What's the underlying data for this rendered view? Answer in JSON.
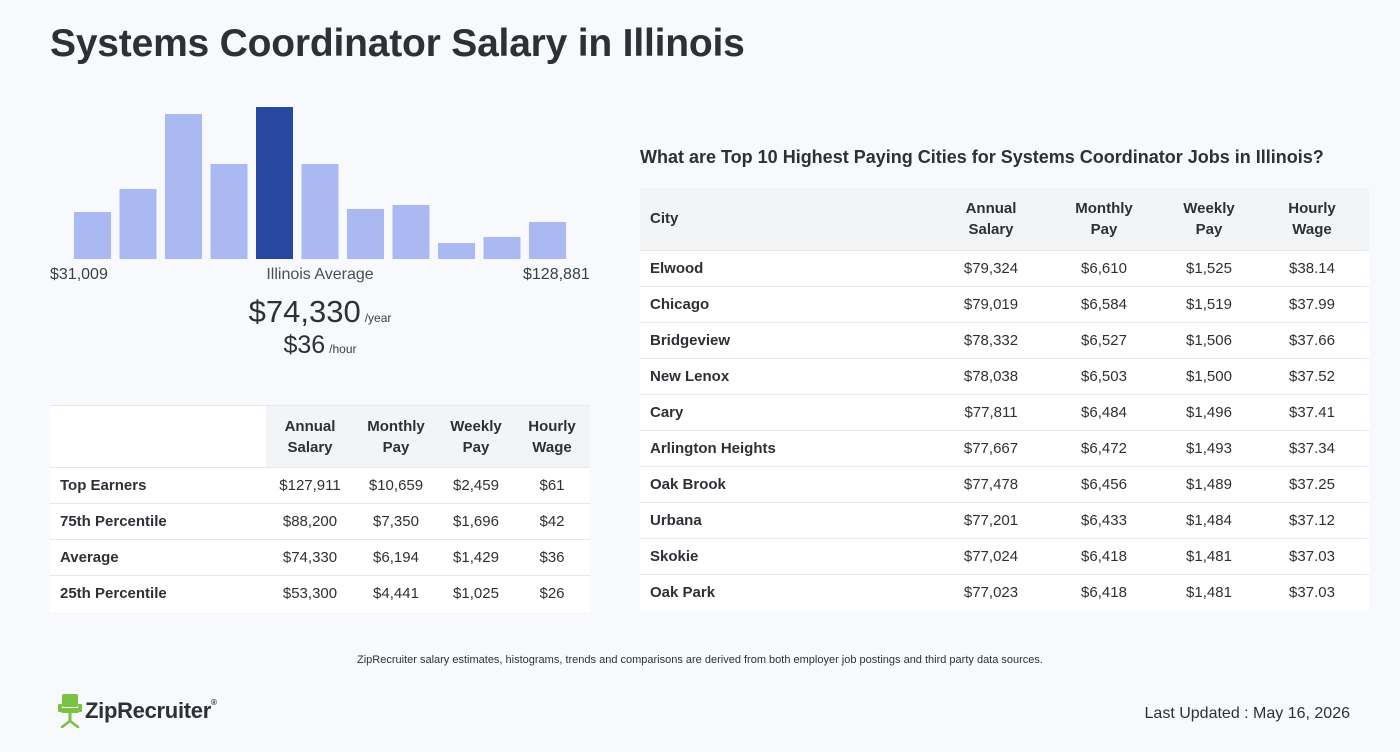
{
  "page": {
    "title": "Systems Coordinator Salary in Illinois"
  },
  "colors": {
    "bar": "#aab9f2",
    "bar_highlight": "#2747a3",
    "brand_green": "#7bc142"
  },
  "chart_data": {
    "type": "bar",
    "title": "",
    "values": [
      47,
      70,
      145,
      95,
      152,
      95,
      50,
      54,
      16,
      22,
      37
    ],
    "highlight_index": 4,
    "ylim": [
      0,
      152
    ],
    "grid": false,
    "range_min_label": "$31,009",
    "range_max_label": "$128,881",
    "center_label": "Illinois Average"
  },
  "average": {
    "annual": "$74,330",
    "annual_unit": "/year",
    "hourly": "$36",
    "hourly_unit": "/hour"
  },
  "percentile_table": {
    "headers": [
      {
        "line1": "Annual",
        "line2": "Salary"
      },
      {
        "line1": "Monthly",
        "line2": "Pay"
      },
      {
        "line1": "Weekly",
        "line2": "Pay"
      },
      {
        "line1": "Hourly",
        "line2": "Wage"
      }
    ],
    "rows": [
      {
        "label": "Top Earners",
        "annual": "$127,911",
        "monthly": "$10,659",
        "weekly": "$2,459",
        "hourly": "$61"
      },
      {
        "label": "75th Percentile",
        "annual": "$88,200",
        "monthly": "$7,350",
        "weekly": "$1,696",
        "hourly": "$42"
      },
      {
        "label": "Average",
        "annual": "$74,330",
        "monthly": "$6,194",
        "weekly": "$1,429",
        "hourly": "$36"
      },
      {
        "label": "25th Percentile",
        "annual": "$53,300",
        "monthly": "$4,441",
        "weekly": "$1,025",
        "hourly": "$26"
      }
    ]
  },
  "cities": {
    "heading": "What are Top 10 Highest Paying Cities for Systems Coordinator Jobs in Illinois?",
    "city_header": "City",
    "headers": [
      {
        "line1": "Annual",
        "line2": "Salary"
      },
      {
        "line1": "Monthly",
        "line2": "Pay"
      },
      {
        "line1": "Weekly",
        "line2": "Pay"
      },
      {
        "line1": "Hourly",
        "line2": "Wage"
      }
    ],
    "rows": [
      {
        "city": "Elwood",
        "annual": "$79,324",
        "monthly": "$6,610",
        "weekly": "$1,525",
        "hourly": "$38.14"
      },
      {
        "city": "Chicago",
        "annual": "$79,019",
        "monthly": "$6,584",
        "weekly": "$1,519",
        "hourly": "$37.99"
      },
      {
        "city": "Bridgeview",
        "annual": "$78,332",
        "monthly": "$6,527",
        "weekly": "$1,506",
        "hourly": "$37.66"
      },
      {
        "city": "New Lenox",
        "annual": "$78,038",
        "monthly": "$6,503",
        "weekly": "$1,500",
        "hourly": "$37.52"
      },
      {
        "city": "Cary",
        "annual": "$77,811",
        "monthly": "$6,484",
        "weekly": "$1,496",
        "hourly": "$37.41"
      },
      {
        "city": "Arlington Heights",
        "annual": "$77,667",
        "monthly": "$6,472",
        "weekly": "$1,493",
        "hourly": "$37.34"
      },
      {
        "city": "Oak Brook",
        "annual": "$77,478",
        "monthly": "$6,456",
        "weekly": "$1,489",
        "hourly": "$37.25"
      },
      {
        "city": "Urbana",
        "annual": "$77,201",
        "monthly": "$6,433",
        "weekly": "$1,484",
        "hourly": "$37.12"
      },
      {
        "city": "Skokie",
        "annual": "$77,024",
        "monthly": "$6,418",
        "weekly": "$1,481",
        "hourly": "$37.03"
      },
      {
        "city": "Oak Park",
        "annual": "$77,023",
        "monthly": "$6,418",
        "weekly": "$1,481",
        "hourly": "$37.03"
      }
    ]
  },
  "footer": {
    "disclaimer": "ZipRecruiter salary estimates, histograms, trends and comparisons are derived from both employer job postings and third party data sources.",
    "logo_text": "ZipRecruiter",
    "logo_mark": "®",
    "logo_icon": "ziprecruiter-chair-icon",
    "last_updated": "Last Updated : May 16, 2026"
  }
}
